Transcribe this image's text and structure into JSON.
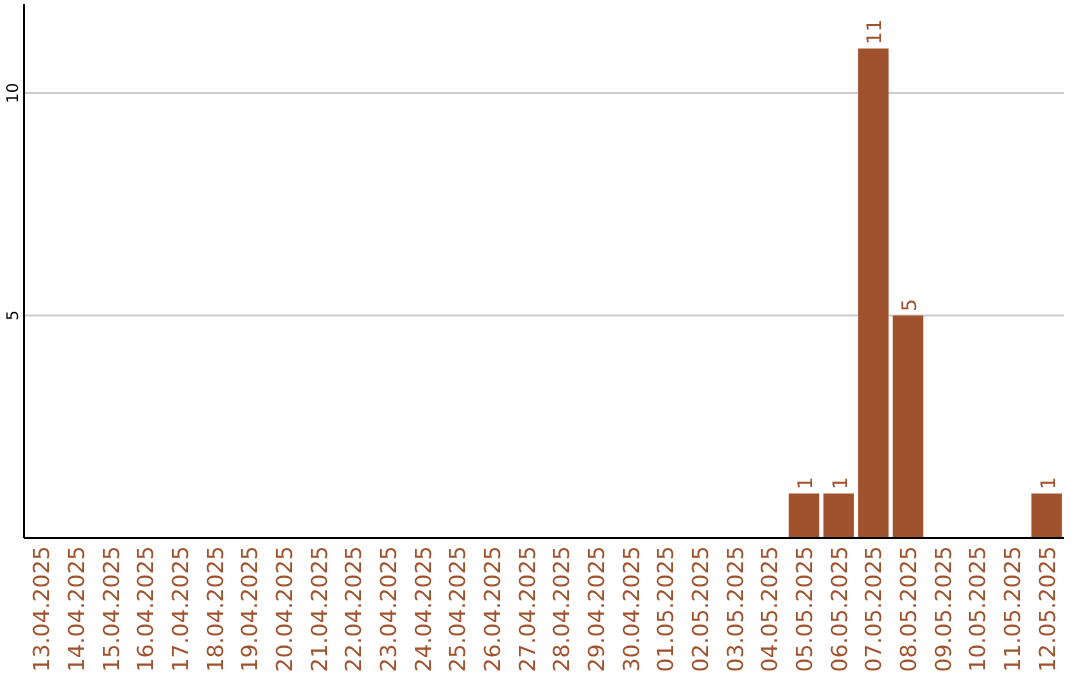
{
  "chart_data": {
    "type": "bar",
    "categories": [
      "13.04.2025",
      "14.04.2025",
      "15.04.2025",
      "16.04.2025",
      "17.04.2025",
      "18.04.2025",
      "19.04.2025",
      "20.04.2025",
      "21.04.2025",
      "22.04.2025",
      "23.04.2025",
      "24.04.2025",
      "25.04.2025",
      "26.04.2025",
      "27.04.2025",
      "28.04.2025",
      "29.04.2025",
      "30.04.2025",
      "01.05.2025",
      "02.05.2025",
      "03.05.2025",
      "04.05.2025",
      "05.05.2025",
      "06.05.2025",
      "07.05.2025",
      "08.05.2025",
      "09.05.2025",
      "10.05.2025",
      "11.05.2025",
      "12.05.2025"
    ],
    "values": [
      0,
      0,
      0,
      0,
      0,
      0,
      0,
      0,
      0,
      0,
      0,
      0,
      0,
      0,
      0,
      0,
      0,
      0,
      0,
      0,
      0,
      0,
      1,
      1,
      11,
      5,
      0,
      0,
      0,
      1
    ],
    "value_labels": [
      null,
      null,
      null,
      null,
      null,
      null,
      null,
      null,
      null,
      null,
      null,
      null,
      null,
      null,
      null,
      null,
      null,
      null,
      null,
      null,
      null,
      null,
      "1",
      "1",
      "11",
      "5",
      null,
      null,
      null,
      "1"
    ],
    "color": "#a0522d",
    "ylim": [
      0,
      12
    ],
    "yticks": [
      5,
      10
    ],
    "grid": "y"
  }
}
